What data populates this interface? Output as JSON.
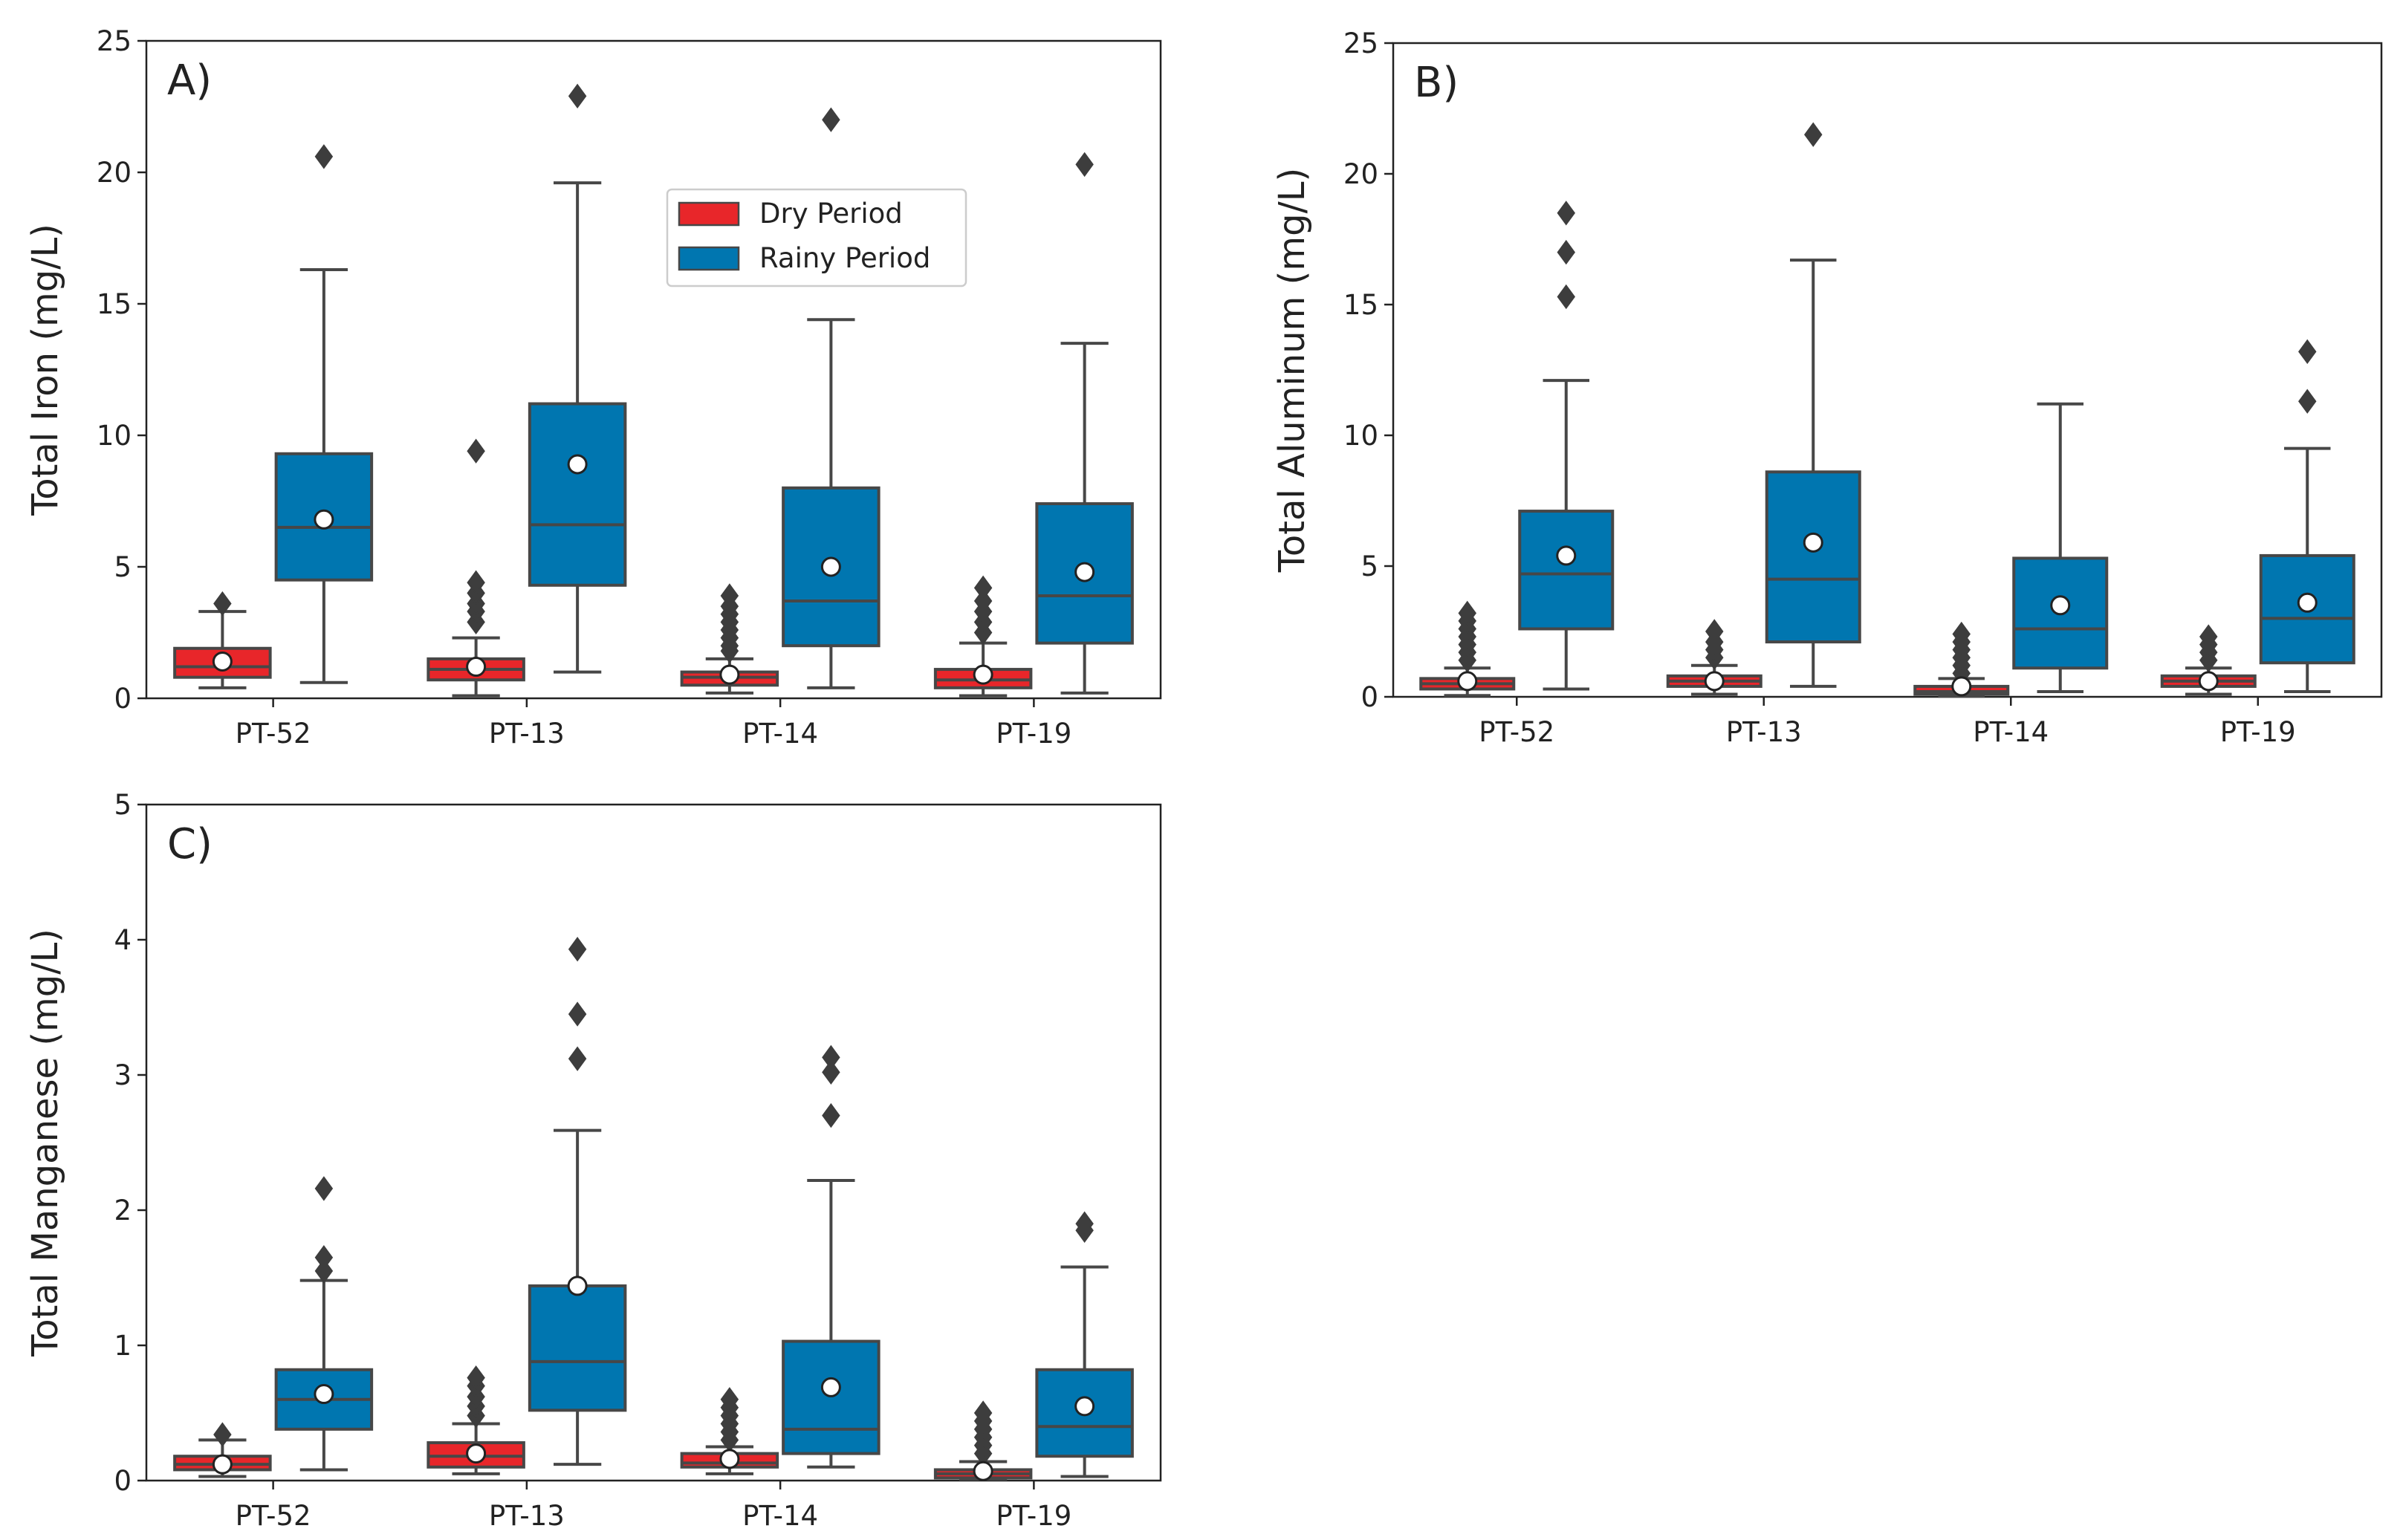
{
  "chart_data": [
    {
      "type": "box",
      "panel_label": "A)",
      "ylabel": "Total Iron (mg/L)",
      "xlabel": "",
      "ylim": [
        0,
        25
      ],
      "yticks": [
        0,
        5,
        10,
        15,
        20,
        25
      ],
      "categories": [
        "PT-52",
        "PT-13",
        "PT-14",
        "PT-19"
      ],
      "legend": {
        "placement": "upper-center",
        "entries": [
          {
            "name": "Dry Period",
            "color": "#e8262a"
          },
          {
            "name": "Rainy Period",
            "color": "#0076b0"
          }
        ]
      },
      "series": [
        {
          "name": "Dry Period",
          "color": "#e8262a",
          "boxes": [
            {
              "whisker_low": 0.4,
              "q1": 0.8,
              "median": 1.2,
              "q3": 1.9,
              "whisker_high": 3.3,
              "mean": 1.4,
              "outliers": [
                3.6
              ]
            },
            {
              "whisker_low": 0.1,
              "q1": 0.7,
              "median": 1.1,
              "q3": 1.5,
              "whisker_high": 2.3,
              "mean": 1.2,
              "outliers": [
                2.9,
                3.3,
                3.6,
                4.0,
                4.4,
                9.4
              ]
            },
            {
              "whisker_low": 0.2,
              "q1": 0.5,
              "median": 0.8,
              "q3": 1.0,
              "whisker_high": 1.5,
              "mean": 0.9,
              "outliers": [
                1.8,
                2.0,
                2.3,
                2.6,
                2.9,
                3.2,
                3.5,
                3.9
              ]
            },
            {
              "whisker_low": 0.1,
              "q1": 0.4,
              "median": 0.7,
              "q3": 1.1,
              "whisker_high": 2.1,
              "mean": 0.9,
              "outliers": [
                2.5,
                2.9,
                3.3,
                3.7,
                4.2
              ]
            }
          ]
        },
        {
          "name": "Rainy Period",
          "color": "#0076b0",
          "boxes": [
            {
              "whisker_low": 0.6,
              "q1": 4.5,
              "median": 6.5,
              "q3": 9.3,
              "whisker_high": 16.3,
              "mean": 6.8,
              "outliers": [
                20.6
              ]
            },
            {
              "whisker_low": 1.0,
              "q1": 4.3,
              "median": 6.6,
              "q3": 11.2,
              "whisker_high": 19.6,
              "mean": 8.9,
              "outliers": [
                22.9
              ]
            },
            {
              "whisker_low": 0.4,
              "q1": 2.0,
              "median": 3.7,
              "q3": 8.0,
              "whisker_high": 14.4,
              "mean": 5.0,
              "outliers": [
                22.0
              ]
            },
            {
              "whisker_low": 0.2,
              "q1": 2.1,
              "median": 3.9,
              "q3": 7.4,
              "whisker_high": 13.5,
              "mean": 4.8,
              "outliers": [
                20.3
              ]
            }
          ]
        }
      ]
    },
    {
      "type": "box",
      "panel_label": "B)",
      "ylabel": "Total Aluminum (mg/L)",
      "xlabel": "",
      "ylim": [
        0,
        25
      ],
      "yticks": [
        0,
        5,
        10,
        15,
        20,
        25
      ],
      "categories": [
        "PT-52",
        "PT-13",
        "PT-14",
        "PT-19"
      ],
      "series": [
        {
          "name": "Dry Period",
          "color": "#e8262a",
          "boxes": [
            {
              "whisker_low": 0.05,
              "q1": 0.3,
              "median": 0.5,
              "q3": 0.7,
              "whisker_high": 1.1,
              "mean": 0.6,
              "outliers": [
                1.4,
                1.7,
                2.0,
                2.3,
                2.6,
                2.9,
                3.2
              ]
            },
            {
              "whisker_low": 0.1,
              "q1": 0.4,
              "median": 0.6,
              "q3": 0.8,
              "whisker_high": 1.2,
              "mean": 0.6,
              "outliers": [
                1.5,
                1.8,
                2.1,
                2.5
              ]
            },
            {
              "whisker_low": 0.02,
              "q1": 0.1,
              "median": 0.2,
              "q3": 0.4,
              "whisker_high": 0.7,
              "mean": 0.4,
              "outliers": [
                0.9,
                1.2,
                1.5,
                1.8,
                2.1,
                2.4
              ]
            },
            {
              "whisker_low": 0.1,
              "q1": 0.4,
              "median": 0.6,
              "q3": 0.8,
              "whisker_high": 1.1,
              "mean": 0.6,
              "outliers": [
                1.4,
                1.7,
                2.0,
                2.3
              ]
            }
          ]
        },
        {
          "name": "Rainy Period",
          "color": "#0076b0",
          "boxes": [
            {
              "whisker_low": 0.3,
              "q1": 2.6,
              "median": 4.7,
              "q3": 7.1,
              "whisker_high": 12.1,
              "mean": 5.4,
              "outliers": [
                15.3,
                17.0,
                18.5
              ]
            },
            {
              "whisker_low": 0.4,
              "q1": 2.1,
              "median": 4.5,
              "q3": 8.6,
              "whisker_high": 16.7,
              "mean": 5.9,
              "outliers": [
                21.5
              ]
            },
            {
              "whisker_low": 0.2,
              "q1": 1.1,
              "median": 2.6,
              "q3": 5.3,
              "whisker_high": 11.2,
              "mean": 3.5,
              "outliers": []
            },
            {
              "whisker_low": 0.2,
              "q1": 1.3,
              "median": 3.0,
              "q3": 5.4,
              "whisker_high": 9.5,
              "mean": 3.6,
              "outliers": [
                11.3,
                13.2
              ]
            }
          ]
        }
      ]
    },
    {
      "type": "box",
      "panel_label": "C)",
      "ylabel": "Total Manganese (mg/L)",
      "xlabel": "",
      "ylim": [
        0,
        5
      ],
      "yticks": [
        0,
        1,
        2,
        3,
        4,
        5
      ],
      "categories": [
        "PT-52",
        "PT-13",
        "PT-14",
        "PT-19"
      ],
      "series": [
        {
          "name": "Dry Period",
          "color": "#e8262a",
          "boxes": [
            {
              "whisker_low": 0.03,
              "q1": 0.08,
              "median": 0.12,
              "q3": 0.18,
              "whisker_high": 0.3,
              "mean": 0.12,
              "outliers": [
                0.34
              ]
            },
            {
              "whisker_low": 0.05,
              "q1": 0.1,
              "median": 0.18,
              "q3": 0.28,
              "whisker_high": 0.42,
              "mean": 0.2,
              "outliers": [
                0.48,
                0.55,
                0.62,
                0.7,
                0.76
              ]
            },
            {
              "whisker_low": 0.05,
              "q1": 0.1,
              "median": 0.13,
              "q3": 0.2,
              "whisker_high": 0.25,
              "mean": 0.16,
              "outliers": [
                0.3,
                0.36,
                0.42,
                0.48,
                0.54,
                0.6
              ]
            },
            {
              "whisker_low": 0.01,
              "q1": 0.02,
              "median": 0.05,
              "q3": 0.08,
              "whisker_high": 0.14,
              "mean": 0.07,
              "outliers": [
                0.2,
                0.26,
                0.32,
                0.38,
                0.44,
                0.5
              ]
            }
          ]
        },
        {
          "name": "Rainy Period",
          "color": "#0076b0",
          "boxes": [
            {
              "whisker_low": 0.08,
              "q1": 0.38,
              "median": 0.6,
              "q3": 0.82,
              "whisker_high": 1.48,
              "mean": 0.64,
              "outliers": [
                1.55,
                1.65,
                2.16
              ]
            },
            {
              "whisker_low": 0.12,
              "q1": 0.52,
              "median": 0.88,
              "q3": 1.44,
              "whisker_high": 2.59,
              "mean": 1.44,
              "outliers": [
                3.12,
                3.45,
                3.93
              ]
            },
            {
              "whisker_low": 0.1,
              "q1": 0.2,
              "median": 0.38,
              "q3": 1.03,
              "whisker_high": 2.22,
              "mean": 0.69,
              "outliers": [
                2.7,
                3.02,
                3.13
              ]
            },
            {
              "whisker_low": 0.03,
              "q1": 0.18,
              "median": 0.4,
              "q3": 0.82,
              "whisker_high": 1.58,
              "mean": 0.55,
              "outliers": [
                1.85,
                1.9
              ]
            }
          ]
        }
      ]
    }
  ]
}
